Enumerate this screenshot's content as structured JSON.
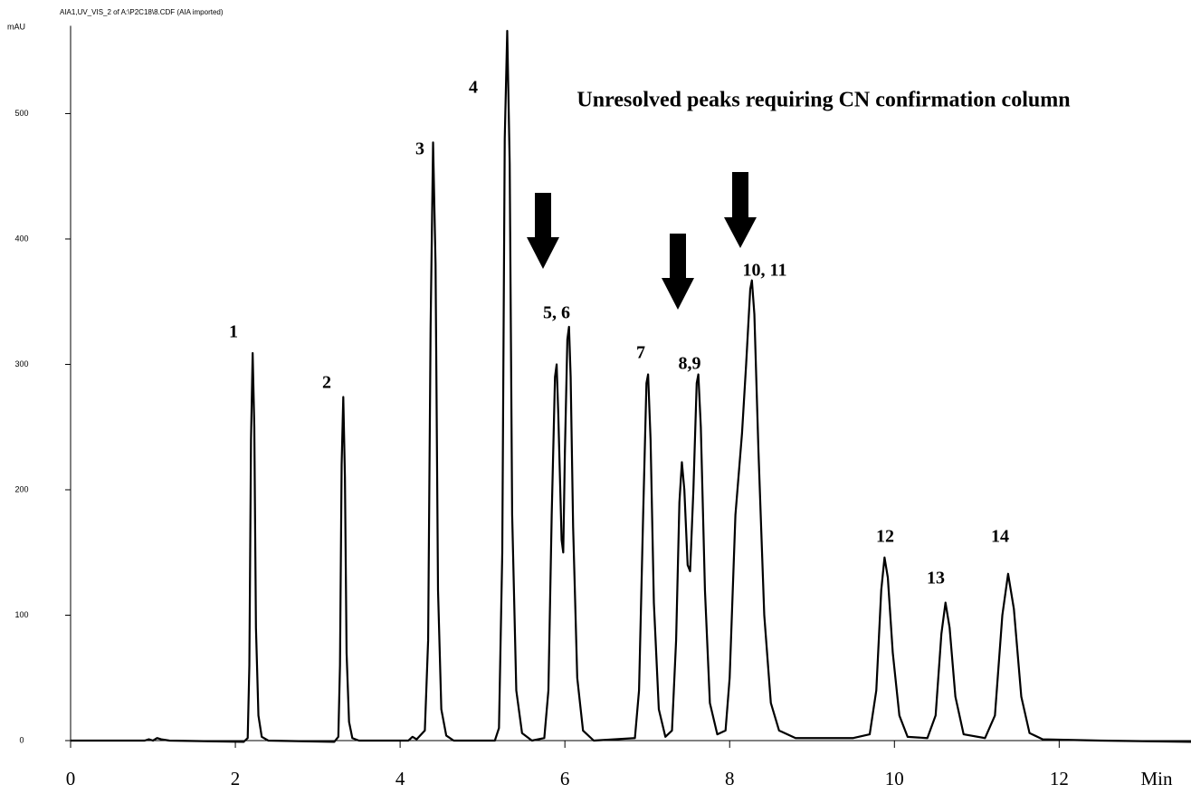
{
  "chart_data": {
    "type": "line",
    "title": "AIA1,UV_VIS_2 of A:\\P2C18\\8.CDF (AIA imported)",
    "y_label": "mAU",
    "x_label": "Min",
    "annotation": "Unresolved peaks requiring CN confirmation column",
    "peak_labels": [
      "1",
      "2",
      "3",
      "4",
      "5, 6",
      "7",
      "8,9",
      "10, 11",
      "12",
      "13",
      "14"
    ],
    "xlim": [
      0,
      13.6
    ],
    "xticks": [
      0,
      2,
      4,
      6,
      8,
      10,
      12
    ],
    "ylim": [
      0,
      570
    ],
    "yticks": [
      0,
      100,
      200,
      300,
      400,
      500
    ],
    "color": "#000000",
    "x": [
      0,
      0.9,
      0.95,
      1.0,
      1.05,
      1.1,
      1.2,
      2.1,
      2.15,
      2.17,
      2.19,
      2.21,
      2.23,
      2.25,
      2.28,
      2.32,
      2.4,
      3.2,
      3.25,
      3.27,
      3.29,
      3.31,
      3.33,
      3.35,
      3.38,
      3.42,
      3.5,
      4.1,
      4.15,
      4.2,
      4.3,
      4.34,
      4.37,
      4.4,
      4.43,
      4.46,
      4.5,
      4.56,
      4.65,
      5.15,
      5.2,
      5.24,
      5.27,
      5.3,
      5.33,
      5.36,
      5.41,
      5.48,
      5.6,
      5.75,
      5.8,
      5.84,
      5.88,
      5.9,
      5.92,
      5.96,
      5.98,
      6.0,
      6.03,
      6.05,
      6.07,
      6.1,
      6.15,
      6.22,
      6.35,
      6.85,
      6.9,
      6.95,
      6.99,
      7.01,
      7.04,
      7.08,
      7.14,
      7.22,
      7.3,
      7.35,
      7.39,
      7.42,
      7.45,
      7.49,
      7.52,
      7.56,
      7.6,
      7.62,
      7.65,
      7.7,
      7.76,
      7.85,
      7.95,
      8.0,
      8.07,
      8.15,
      8.2,
      8.25,
      8.27,
      8.3,
      8.35,
      8.42,
      8.5,
      8.6,
      8.8,
      9.5,
      9.7,
      9.78,
      9.84,
      9.88,
      9.92,
      9.98,
      10.06,
      10.16,
      10.4,
      10.5,
      10.57,
      10.62,
      10.67,
      10.74,
      10.84,
      11.1,
      11.22,
      11.31,
      11.38,
      11.45,
      11.54,
      11.64,
      11.8,
      12.5,
      13.6
    ],
    "values": [
      0,
      0,
      1,
      0,
      2,
      1,
      0,
      -1,
      2,
      60,
      240,
      309,
      250,
      90,
      20,
      3,
      0,
      -1,
      3,
      60,
      220,
      274,
      210,
      70,
      15,
      2,
      0,
      0,
      3,
      1,
      8,
      80,
      330,
      477,
      380,
      120,
      25,
      4,
      0,
      0,
      10,
      150,
      480,
      566,
      460,
      180,
      40,
      6,
      0,
      2,
      40,
      180,
      290,
      300,
      260,
      160,
      150,
      230,
      320,
      330,
      290,
      170,
      50,
      8,
      0,
      2,
      40,
      180,
      285,
      292,
      240,
      110,
      25,
      3,
      8,
      80,
      190,
      222,
      200,
      140,
      135,
      200,
      285,
      292,
      250,
      120,
      30,
      5,
      8,
      50,
      180,
      245,
      300,
      360,
      367,
      340,
      230,
      100,
      30,
      8,
      2,
      2,
      5,
      40,
      120,
      146,
      130,
      70,
      20,
      3,
      2,
      20,
      85,
      110,
      90,
      35,
      5,
      2,
      20,
      100,
      133,
      105,
      35,
      6,
      1,
      0,
      -1
    ]
  }
}
